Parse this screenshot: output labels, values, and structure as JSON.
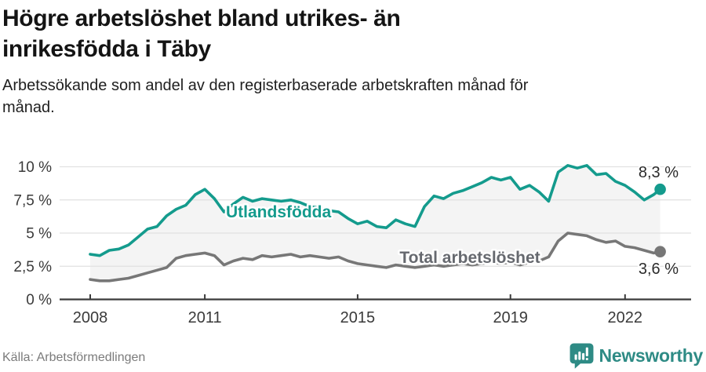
{
  "header": {
    "title_lines": [
      "Högre arbetslöshet bland utrikes- än",
      "inrikesfödda i Täby"
    ],
    "subtitle_lines": [
      "Arbetssökande som andel av den registerbaserade arbetskraften månad för",
      "månad."
    ]
  },
  "chart_data": {
    "type": "line",
    "title": "Högre arbetslöshet bland utrikes- än inrikesfödda i Täby",
    "subtitle": "Arbetssökande som andel av den registerbaserade arbetskraften månad för månad.",
    "xlabel": "",
    "ylabel": "",
    "x_unit": "decimal_year",
    "xlim": [
      2008,
      2023
    ],
    "ylim": [
      0,
      10.5
    ],
    "grid": "horizontal",
    "area_fill_between_series": true,
    "x": [
      2008.0,
      2008.25,
      2008.5,
      2008.75,
      2009.0,
      2009.25,
      2009.5,
      2009.75,
      2010.0,
      2010.25,
      2010.5,
      2010.75,
      2011.0,
      2011.25,
      2011.5,
      2011.75,
      2012.0,
      2012.25,
      2012.5,
      2012.75,
      2013.0,
      2013.25,
      2013.5,
      2013.75,
      2014.0,
      2014.25,
      2014.5,
      2014.75,
      2015.0,
      2015.25,
      2015.5,
      2015.75,
      2016.0,
      2016.25,
      2016.5,
      2016.75,
      2017.0,
      2017.25,
      2017.5,
      2017.75,
      2018.0,
      2018.25,
      2018.5,
      2018.75,
      2019.0,
      2019.25,
      2019.5,
      2019.75,
      2020.0,
      2020.25,
      2020.5,
      2020.75,
      2021.0,
      2021.25,
      2021.5,
      2021.75,
      2022.0,
      2022.25,
      2022.5,
      2022.75,
      2022.92
    ],
    "series": [
      {
        "name": "Utlandsfödda",
        "label": "Utlandsfödda",
        "color": "#149b8d",
        "label_color": "#149b8d",
        "end_label": "8,3 %",
        "end_value": 8.3,
        "values": [
          3.4,
          3.3,
          3.7,
          3.8,
          4.1,
          4.7,
          5.3,
          5.5,
          6.3,
          6.8,
          7.1,
          7.9,
          8.3,
          7.6,
          6.6,
          7.2,
          7.7,
          7.4,
          7.6,
          7.5,
          7.4,
          7.5,
          7.3,
          7.0,
          6.9,
          6.7,
          6.6,
          6.1,
          5.7,
          5.9,
          5.5,
          5.4,
          6.0,
          5.7,
          5.5,
          7.0,
          7.8,
          7.6,
          8.0,
          8.2,
          8.5,
          8.8,
          9.2,
          9.0,
          9.2,
          8.3,
          8.6,
          8.1,
          7.4,
          9.6,
          10.1,
          9.9,
          10.1,
          9.4,
          9.5,
          8.9,
          8.6,
          8.1,
          7.5,
          7.9,
          8.3
        ]
      },
      {
        "name": "Total arbetslöshet",
        "label": "Total arbetslöshet",
        "color": "#777777",
        "label_color": "#66696f",
        "end_label": "3,6 %",
        "end_value": 3.6,
        "values": [
          1.5,
          1.4,
          1.4,
          1.5,
          1.6,
          1.8,
          2.0,
          2.2,
          2.4,
          3.1,
          3.3,
          3.4,
          3.5,
          3.3,
          2.6,
          2.9,
          3.1,
          3.0,
          3.3,
          3.2,
          3.3,
          3.4,
          3.2,
          3.3,
          3.2,
          3.1,
          3.2,
          2.9,
          2.7,
          2.6,
          2.5,
          2.4,
          2.6,
          2.5,
          2.4,
          2.5,
          2.6,
          2.5,
          2.6,
          2.7,
          2.6,
          2.7,
          2.8,
          2.7,
          2.8,
          2.6,
          2.8,
          2.9,
          3.2,
          4.4,
          5.0,
          4.9,
          4.8,
          4.5,
          4.3,
          4.4,
          4.0,
          3.9,
          3.7,
          3.5,
          3.6
        ]
      }
    ],
    "yticks": [
      {
        "value": 0,
        "label": "0 %"
      },
      {
        "value": 2.5,
        "label": "2,5 %"
      },
      {
        "value": 5,
        "label": "5 %"
      },
      {
        "value": 7.5,
        "label": "7,5 %"
      },
      {
        "value": 10,
        "label": "10 %"
      }
    ],
    "xticks": [
      {
        "value": 2008,
        "label": "2008"
      },
      {
        "value": 2011,
        "label": "2011"
      },
      {
        "value": 2015,
        "label": "2015"
      },
      {
        "value": 2019,
        "label": "2019"
      },
      {
        "value": 2022,
        "label": "2022"
      }
    ]
  },
  "footer": {
    "source": "Källa: Arbetsförmedlingen",
    "brand": "Newsworthy"
  },
  "colors": {
    "accent": "#149b8d",
    "gray_line": "#777777",
    "area_fill": "#f4f4f4",
    "grid": "#e1e1e1",
    "axis_text": "#3a3a3a",
    "brand": "#2e8b85"
  }
}
